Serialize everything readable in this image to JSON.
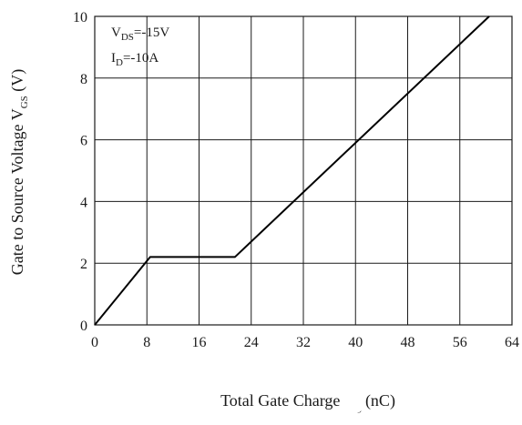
{
  "chart_data": {
    "type": "line",
    "xlabel": {
      "main": "Total Gate Charge  Q",
      "sub": "g",
      "unit": " (nC)"
    },
    "ylabel": {
      "main": "Gate to Source Voltage  V",
      "sub": "GS",
      "unit": " (V)"
    },
    "xlim": [
      0,
      64
    ],
    "ylim": [
      0,
      10
    ],
    "x_ticks": [
      0,
      8,
      16,
      24,
      32,
      40,
      48,
      56,
      64
    ],
    "y_ticks": [
      0,
      2,
      4,
      6,
      8,
      10
    ],
    "grid": true,
    "annotations": [
      {
        "main": "V",
        "sub": "DS",
        "rest": "=-15V"
      },
      {
        "main": "I",
        "sub": "D",
        "rest": "=-10A"
      }
    ],
    "series": [
      {
        "x": [
          0,
          8.5,
          21.5,
          60.5
        ],
        "y": [
          0,
          2.2,
          2.2,
          10
        ]
      }
    ]
  }
}
